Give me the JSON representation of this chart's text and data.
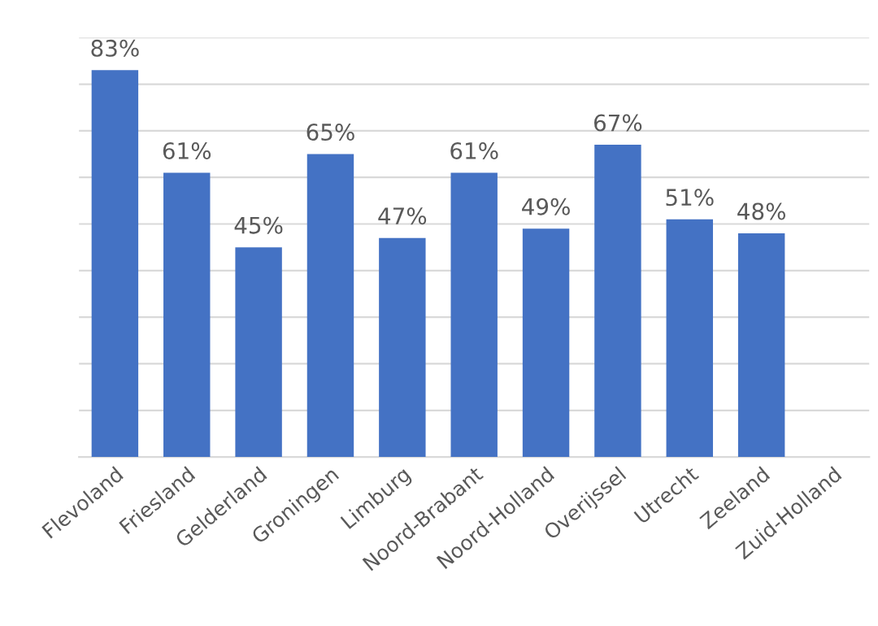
{
  "chart_data": {
    "type": "bar",
    "categories": [
      "Flevoland",
      "Friesland",
      "Gelderland",
      "Groningen",
      "Limburg",
      "Noord-Brabant",
      "Noord-Holland",
      "Overijssel",
      "Utrecht",
      "Zeeland",
      "Zuid-Holland"
    ],
    "values": [
      83,
      61,
      45,
      65,
      47,
      61,
      49,
      67,
      51,
      48,
      null
    ],
    "value_labels": [
      "83%",
      "61%",
      "45%",
      "65%",
      "47%",
      "61%",
      "49%",
      "67%",
      "51%",
      "48%",
      null
    ],
    "color": "#4472c4",
    "ylim": [
      0,
      90
    ],
    "yticks": [
      {
        "value": 0,
        "label": null
      },
      {
        "value": 10,
        "label": null
      },
      {
        "value": 20,
        "label": null
      },
      {
        "value": 30,
        "label": null
      },
      {
        "value": 40,
        "label": null
      },
      {
        "value": 50,
        "label": null
      },
      {
        "value": 60,
        "label": null
      },
      {
        "value": 70,
        "label": null
      },
      {
        "value": 80,
        "label": null
      },
      {
        "value": 90,
        "label": null
      }
    ],
    "grid": "y",
    "tick_labels": "x"
  }
}
